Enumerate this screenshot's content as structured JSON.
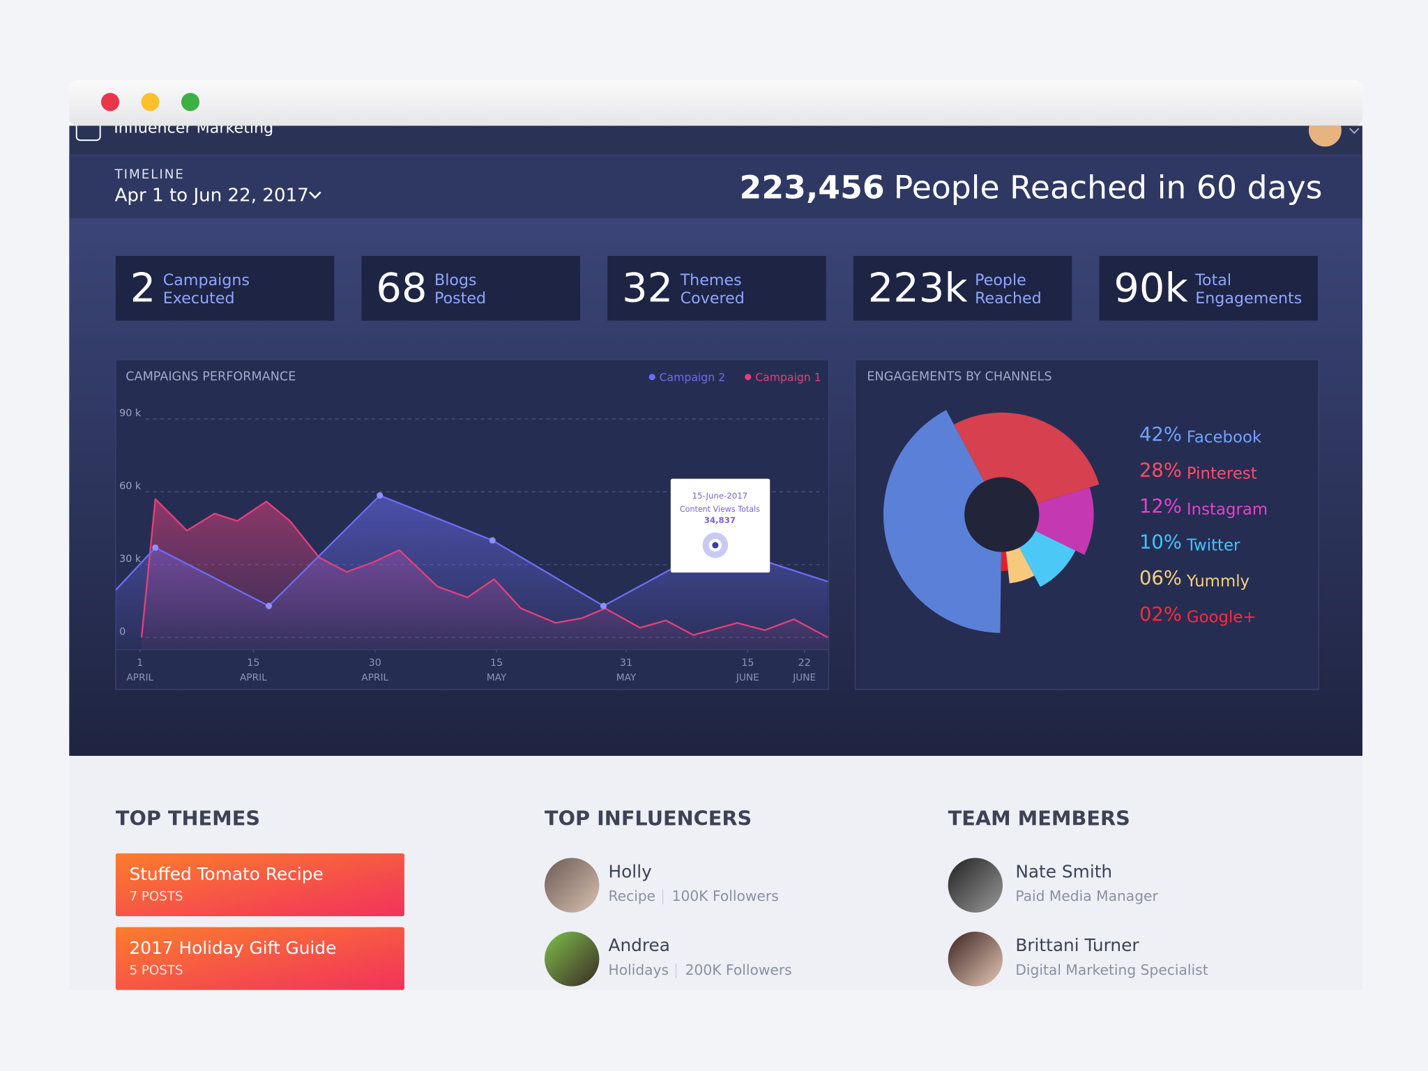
{
  "app_title": "Influencer Marketing",
  "timeline": {
    "label": "TIMELINE",
    "range": "Apr 1 to Jun 22, 2017"
  },
  "headline": {
    "number": "223,456",
    "text": "People Reached in 60 days"
  },
  "stats": [
    {
      "value": "2",
      "label": [
        "Campaigns",
        "Executed"
      ]
    },
    {
      "value": "68",
      "label": [
        "Blogs",
        "Posted"
      ]
    },
    {
      "value": "32",
      "label": [
        "Themes",
        "Covered"
      ]
    },
    {
      "value": "223k",
      "label": [
        "People",
        "Reached"
      ]
    },
    {
      "value": "90k",
      "label": [
        "Total",
        "Engagements"
      ]
    }
  ],
  "chart_data": [
    {
      "type": "area",
      "title": "CAMPAIGNS PERFORMANCE",
      "xlim": [
        -3,
        85
      ],
      "ylim": [
        -5000,
        95000
      ],
      "yticks": [
        0,
        {
          "value": 30000,
          "label": "30 k"
        },
        {
          "value": 60000,
          "label": "60 k"
        },
        {
          "value": 90000,
          "label": "90 k"
        }
      ],
      "xticks": [
        {
          "value": 0,
          "label": "1",
          "month": "APRIL"
        },
        {
          "value": 14,
          "label": "15",
          "month": "APRIL"
        },
        {
          "value": 29,
          "label": "30",
          "month": "APRIL"
        },
        {
          "value": 44,
          "label": "15",
          "month": "MAY"
        },
        {
          "value": 60,
          "label": "31",
          "month": "MAY"
        },
        {
          "value": 75,
          "label": "15",
          "month": "JUNE"
        },
        {
          "value": 82,
          "label": "22",
          "month": "JUNE"
        }
      ],
      "grid": true,
      "series": [
        {
          "name": "Campaign 2",
          "color": "#6c6cf2",
          "x": [
            -3,
            1.9,
            15.9,
            29.6,
            43.5,
            57.2,
            71,
            84.9
          ],
          "values": [
            19500,
            37000,
            13000,
            58500,
            40000,
            13000,
            38000,
            23000
          ]
        },
        {
          "name": "Campaign 1",
          "color": "#e2407c",
          "x": [
            0.2,
            1.9,
            5.8,
            9.2,
            12,
            15.6,
            18.5,
            22.1,
            25.5,
            28.8,
            32,
            36.7,
            40.4,
            43.7,
            47,
            51.3,
            54.6,
            57.4,
            61.7,
            64.9,
            68.3,
            73.7,
            77.1,
            80.7,
            84.9
          ],
          "values": [
            0,
            57000,
            44000,
            51000,
            48000,
            56000,
            48000,
            33000,
            27000,
            31000,
            36000,
            21000,
            16500,
            24000,
            12000,
            6000,
            8000,
            12000,
            4000,
            7000,
            1000,
            6000,
            3000,
            7500,
            0
          ]
        }
      ],
      "tooltip": {
        "date": "15-June-2017",
        "label": "Content Views Totals",
        "value": "34,837"
      }
    },
    {
      "type": "pie",
      "title": "ENGAGEMENTS BY CHANNELS",
      "categories": [
        "Facebook",
        "Pinterest",
        "Instagram",
        "Twitter",
        "Yummly",
        "Google+"
      ],
      "values": [
        42,
        28,
        12,
        10,
        6,
        2
      ],
      "value_labels": [
        "42%",
        "28%",
        "12%",
        "10%",
        "06%",
        "02%"
      ],
      "colors": [
        "#5b80d8",
        "#d6404f",
        "#c438b2",
        "#4cc8f6",
        "#f6c97c",
        "#e0202e"
      ],
      "label_colors": [
        "#72a2ff",
        "#ff4d68",
        "#e442cc",
        "#3fc6ff",
        "#f4d27c",
        "#ff2a3a"
      ]
    }
  ],
  "top_themes": {
    "title": "TOP THEMES",
    "items": [
      {
        "title": "Stuffed Tomato Recipe",
        "posts": "7 POSTS"
      },
      {
        "title": "2017 Holiday Gift Guide",
        "posts": "5 POSTS"
      }
    ]
  },
  "top_influencers": {
    "title": "TOP INFLUENCERS",
    "items": [
      {
        "name": "Holly",
        "category": "Recipe",
        "followers": "100K Followers"
      },
      {
        "name": "Andrea",
        "category": "Holidays",
        "followers": "200K Followers"
      }
    ]
  },
  "team_members": {
    "title": "TEAM MEMBERS",
    "items": [
      {
        "name": "Nate Smith",
        "role": "Paid Media Manager"
      },
      {
        "name": "Brittani Turner",
        "role": "Digital Marketing Specialist"
      }
    ]
  }
}
